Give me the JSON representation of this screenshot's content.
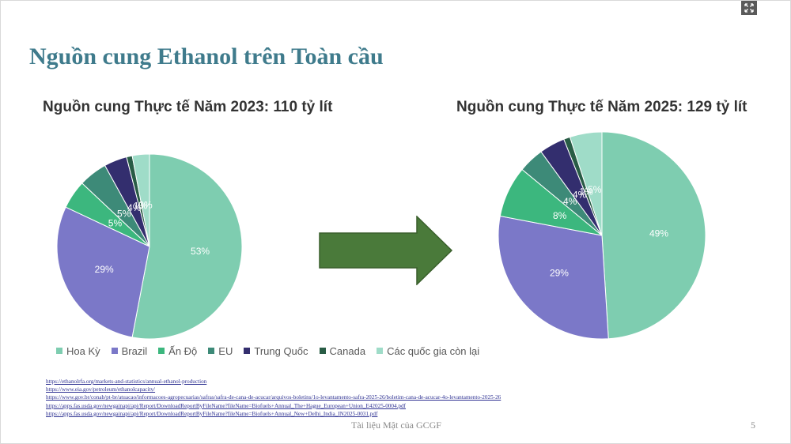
{
  "slide": {
    "title": "Nguồn cung Ethanol trên Toàn cầu",
    "footer": "Tài liệu Mật của GCGF",
    "page_number": "5",
    "expand_icon": "expand-icon",
    "links": [
      "https://ethanolrfa.org/markets-and-statistics/annual-ethanol-production",
      "https://www.eia.gov/petroleum/ethanolcapacity/",
      "https://www.gov.br/conab/pt-br/atuacao/informacoes-agropecuarias/safras/safra-de-cana-de-acucar/arquivos-boletins/1o-levantamento-safra-2025-26/boletim-cana-de-acucar-4o-levantamento-2025-26",
      "https://apps.fas.usda.gov/newgainapi/api/Report/DownloadReportByFileName?fileName=Biofuels+Annual_The+Hague_European+Union_E42025-0004.pdf",
      "https://apps.fas.usda.gov/newgainapi/api/Report/DownloadReportByFileName?fileName=Biofuels+Annual_New+Delhi_India_IN2025-0031.pdf"
    ]
  },
  "arrow": {
    "color": "#4a7a3a",
    "stroke": "#3a5f2c"
  },
  "chart_data": [
    {
      "type": "pie",
      "title": "Nguồn cung Thực tế Năm 2023: 110 tỷ lít",
      "categories": [
        "Hoa Kỳ",
        "Brazil",
        "Ấn Độ",
        "EU",
        "Trung Quốc",
        "Canada",
        "Các quốc gia còn lại"
      ],
      "values": [
        53,
        29,
        5,
        5,
        4,
        1,
        3
      ],
      "labels": [
        "53%",
        "29%",
        "5%",
        "5%",
        "4%",
        "1%",
        "3%"
      ],
      "colors": [
        "#7ecdb0",
        "#7b78c8",
        "#3cb77e",
        "#3d8a78",
        "#332e6e",
        "#285c45",
        "#9fdcc8"
      ],
      "start": "top, clockwise",
      "legend": "bottom"
    },
    {
      "type": "pie",
      "title": "Nguồn cung Thực tế Năm 2025: 129 tỷ lít",
      "categories": [
        "Hoa Kỳ",
        "Brazil",
        "Ấn Độ",
        "EU",
        "Trung Quốc",
        "Canada",
        "Các quốc gia còn lại"
      ],
      "values": [
        49,
        29,
        8,
        4,
        4,
        1,
        5
      ],
      "labels": [
        "49%",
        "29%",
        "8%",
        "4%",
        "4%",
        "1%",
        "5%"
      ],
      "colors": [
        "#7ecdb0",
        "#7b78c8",
        "#3cb77e",
        "#3d8a78",
        "#332e6e",
        "#285c45",
        "#9fdcc8"
      ],
      "start": "top, clockwise"
    }
  ]
}
